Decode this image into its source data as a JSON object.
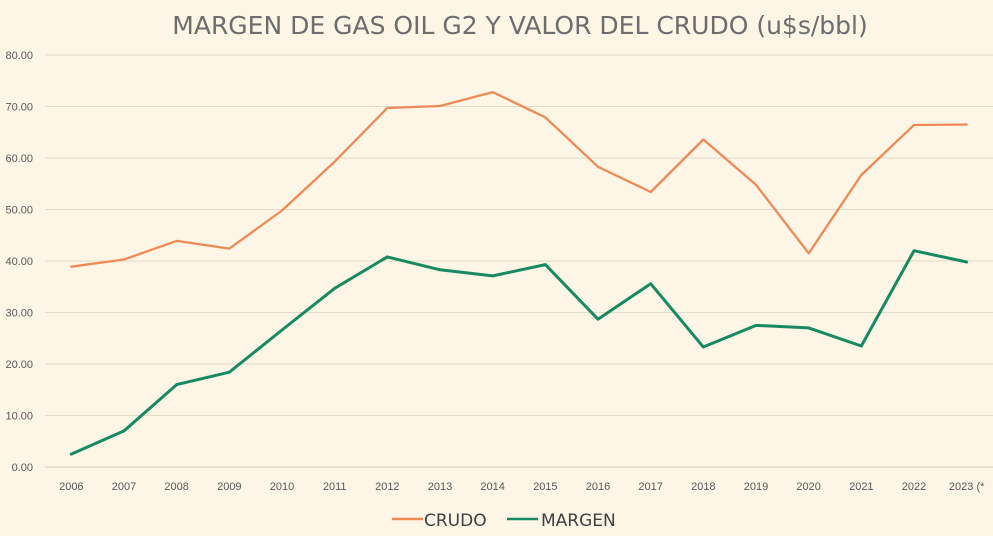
{
  "chart_data": {
    "type": "line",
    "title": "MARGEN DE GAS OIL G2 Y VALOR DEL CRUDO (u$s/bbl)",
    "categories": [
      "2006",
      "2007",
      "2008",
      "2009",
      "2010",
      "2011",
      "2012",
      "2013",
      "2014",
      "2015",
      "2016",
      "2017",
      "2018",
      "2019",
      "2020",
      "2021",
      "2022",
      "2023 (*"
    ],
    "y_tick_labels": [
      "0.00",
      "10.00",
      "20.00",
      "30.00",
      "40.00",
      "50.00",
      "60.00",
      "70.00",
      "80.00"
    ],
    "ylim": [
      0,
      80
    ],
    "grid": true,
    "legend_position": "bottom",
    "series": [
      {
        "name": "CRUDO",
        "color": "#ef8a57",
        "values": [
          38.9,
          40.3,
          43.9,
          42.4,
          49.8,
          59.3,
          69.7,
          70.1,
          72.8,
          67.9,
          58.3,
          53.4,
          63.6,
          54.8,
          41.5,
          56.7,
          66.4,
          66.5
        ]
      },
      {
        "name": "MARGEN",
        "color": "#178a62",
        "values": [
          2.5,
          7.0,
          16.0,
          18.4,
          26.6,
          34.7,
          40.8,
          38.3,
          37.1,
          39.3,
          28.7,
          35.6,
          23.3,
          27.5,
          27.0,
          23.5,
          42.0,
          39.8
        ]
      }
    ]
  }
}
